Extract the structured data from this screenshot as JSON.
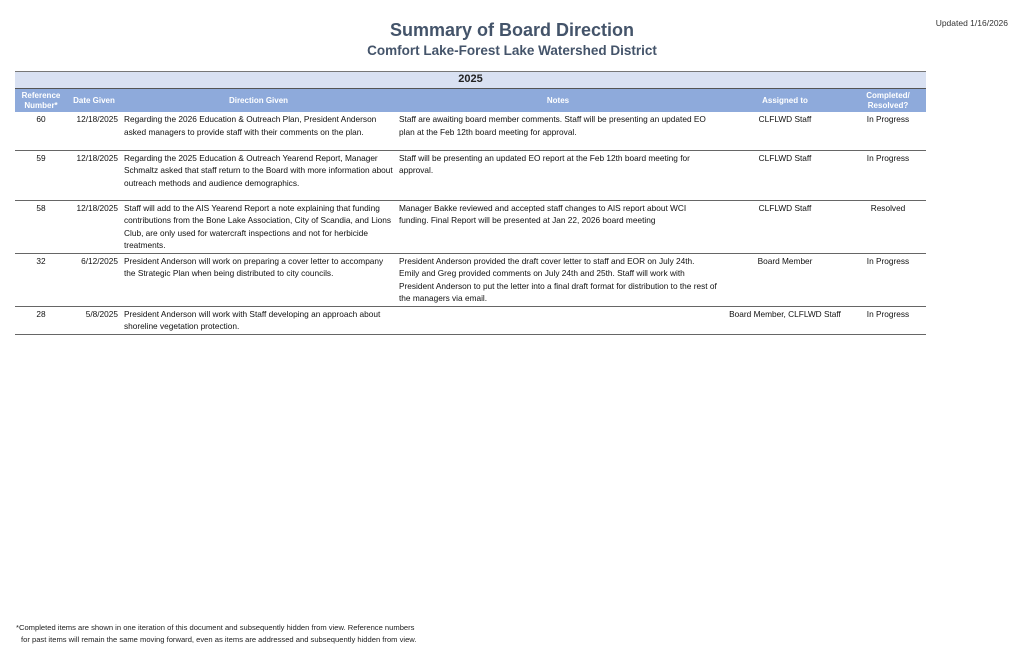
{
  "header": {
    "title": "Summary of Board Direction",
    "subtitle": "Comfort Lake-Forest Lake Watershed District",
    "updated": "Updated 1/16/2026"
  },
  "table": {
    "year": "2025",
    "columns": [
      "Reference Number*",
      "Date Given",
      "Direction Given",
      "Notes",
      "Assigned to",
      "Completed/ Resolved?"
    ],
    "rows": [
      {
        "ref": "60",
        "date": "12/18/2025",
        "direction": "Regarding the 2026 Education & Outreach Plan, President Anderson asked managers to provide staff with their comments on the plan.",
        "notes": "Staff are awaiting board member comments.  Staff will be presenting an updated EO plan at the Feb 12th board meeting for approval.",
        "assigned": "CLFLWD Staff",
        "status": "In Progress"
      },
      {
        "ref": "59",
        "date": "12/18/2025",
        "direction": "Regarding the 2025 Education & Outreach Yearend Report, Manager Schmaltz asked that staff return to the Board with more information about outreach methods and audience demographics.",
        "notes": "Staff will be presenting an updated EO report at the Feb 12th board meeting for approval.",
        "assigned": "CLFLWD Staff",
        "status": "In Progress"
      },
      {
        "ref": "58",
        "date": "12/18/2025",
        "direction": "Staff will add to the AIS Yearend Report a note explaining that funding contributions from the Bone Lake Association, City of Scandia, and Lions Club, are only used for watercraft inspections and not for herbicide treatments.",
        "notes": "Manager Bakke reviewed and accepted staff changes to AIS report about WCI funding. Final Report will be presented at Jan 22, 2026 board meeting",
        "assigned": "CLFLWD Staff",
        "status": "Resolved"
      },
      {
        "ref": "32",
        "date": "6/12/2025",
        "direction": "President Anderson will work on preparing a cover letter to accompany the Strategic Plan when being distributed to city councils.",
        "notes": "President Anderson provided the draft cover letter to staff and EOR on July 24th. Emily and Greg provided comments on July 24th and 25th. Staff will work with President Anderson to put the letter into a final draft format for distribution to the rest of the managers via email.",
        "assigned": "Board Member",
        "status": "In Progress"
      },
      {
        "ref": "28",
        "date": "5/8/2025",
        "direction": "President Anderson will work with Staff developing an approach about shoreline vegetation protection.",
        "notes": "",
        "assigned": "Board Member, CLFLWD Staff",
        "status": "In Progress"
      }
    ]
  },
  "footnote": {
    "line1": "*Completed items are shown in one iteration of this document and subsequently hidden from view. Reference numbers",
    "line2": "for past items will remain the same moving forward, even as items are addressed and subsequently hidden from view."
  }
}
